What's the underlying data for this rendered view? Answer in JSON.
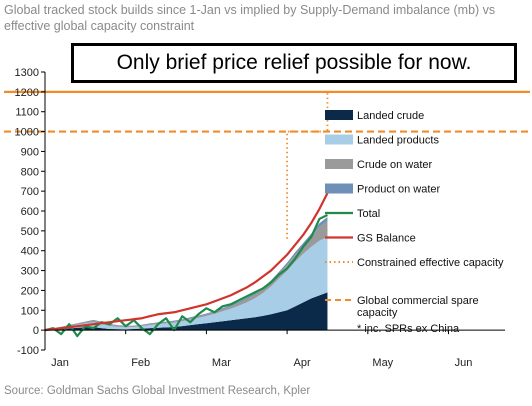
{
  "title": "Global tracked stock builds since 1-Jan vs implied by Supply-Demand imbalance (mb) vs effective global capacity constraint",
  "callout": "Only brief price relief possible for now.",
  "source": "Source: Goldman Sachs Global Investment Research, Kpler",
  "chart_data": {
    "type": "area",
    "ylim": [
      -100,
      1300
    ],
    "y_ticks": [
      -100,
      0,
      100,
      200,
      300,
      400,
      500,
      600,
      700,
      800,
      900,
      1000,
      1100,
      1200,
      1300
    ],
    "x_ticks": [
      "Jan",
      "Feb",
      "Mar",
      "Apr",
      "May",
      "Jun"
    ],
    "x_axis": "months since 1-Jan (Jan=0 ... Jun=5)",
    "x": [
      0.0,
      0.1,
      0.2,
      0.3,
      0.4,
      0.5,
      0.6,
      0.7,
      0.8,
      0.9,
      1.0,
      1.1,
      1.2,
      1.3,
      1.4,
      1.5,
      1.6,
      1.7,
      1.8,
      1.9,
      2.0,
      2.1,
      2.2,
      2.3,
      2.4,
      2.5,
      2.6,
      2.7,
      2.8,
      2.9,
      3.0,
      3.1,
      3.2,
      3.3,
      3.4,
      3.5
    ],
    "series": [
      {
        "name": "Landed crude",
        "color": "#0b2a4a",
        "kind": "stack",
        "values": [
          0,
          2,
          5,
          8,
          12,
          14,
          15,
          10,
          6,
          5,
          4,
          6,
          8,
          10,
          12,
          14,
          16,
          20,
          25,
          30,
          35,
          40,
          45,
          50,
          55,
          60,
          65,
          72,
          80,
          90,
          100,
          120,
          140,
          160,
          175,
          190
        ]
      },
      {
        "name": "Landed products",
        "color": "#a8cde6",
        "kind": "stack",
        "values": [
          0,
          3,
          6,
          10,
          15,
          20,
          25,
          20,
          15,
          12,
          10,
          10,
          12,
          15,
          18,
          20,
          22,
          25,
          28,
          32,
          36,
          42,
          50,
          58,
          68,
          80,
          95,
          115,
          140,
          170,
          200,
          225,
          245,
          260,
          275,
          280
        ]
      },
      {
        "name": "Crude on water",
        "color": "#9a9a9a",
        "kind": "stack",
        "values": [
          0,
          2,
          4,
          5,
          5,
          6,
          8,
          8,
          6,
          5,
          5,
          4,
          4,
          5,
          5,
          5,
          6,
          6,
          7,
          7,
          8,
          9,
          10,
          12,
          14,
          16,
          18,
          20,
          22,
          25,
          30,
          35,
          40,
          50,
          70,
          80
        ]
      },
      {
        "name": "Product on water",
        "color": "#6f8fb7",
        "kind": "stack",
        "values": [
          0,
          1,
          2,
          3,
          3,
          3,
          4,
          4,
          4,
          3,
          3,
          3,
          3,
          4,
          4,
          4,
          4,
          4,
          5,
          5,
          5,
          5,
          6,
          6,
          6,
          7,
          7,
          8,
          8,
          9,
          10,
          12,
          14,
          16,
          18,
          20
        ]
      },
      {
        "name": "Total",
        "color": "#1f8a4c",
        "kind": "line",
        "values": [
          0,
          10,
          -20,
          30,
          -30,
          20,
          10,
          40,
          30,
          60,
          20,
          50,
          10,
          -20,
          30,
          60,
          0,
          70,
          40,
          80,
          110,
          90,
          120,
          130,
          150,
          170,
          190,
          210,
          240,
          280,
          310,
          360,
          420,
          470,
          560,
          580
        ]
      },
      {
        "name": "GS Balance",
        "color": "#d0342c",
        "kind": "line",
        "values": [
          0,
          5,
          10,
          15,
          20,
          25,
          30,
          35,
          40,
          45,
          50,
          55,
          60,
          70,
          80,
          85,
          90,
          100,
          110,
          120,
          130,
          145,
          160,
          175,
          195,
          215,
          240,
          270,
          300,
          340,
          380,
          430,
          480,
          540,
          610,
          690
        ]
      }
    ],
    "legend": [
      {
        "label": "Landed crude",
        "color": "#0b2a4a",
        "style": "box"
      },
      {
        "label": "Landed products",
        "color": "#a8cde6",
        "style": "box"
      },
      {
        "label": "Crude on water",
        "color": "#9a9a9a",
        "style": "box"
      },
      {
        "label": "Product on water",
        "color": "#6f8fb7",
        "style": "box"
      },
      {
        "label": "Total",
        "color": "#1f8a4c",
        "style": "line"
      },
      {
        "label": "GS Balance",
        "color": "#d0342c",
        "style": "line"
      },
      {
        "label": "Constrained effective capacity",
        "color": "#f28c28",
        "style": "dotted"
      },
      {
        "label": "Global commercial spare capacity",
        "color": "#f28c28",
        "style": "dashed"
      },
      {
        "label": "* inc. SPRs ex China",
        "color": "#000000",
        "style": "none"
      }
    ],
    "reference_lines": [
      {
        "name": "capacity-line-1200",
        "y": 1200,
        "color": "#f28c28",
        "style": "solid"
      },
      {
        "name": "spare-capacity-dashed-1000",
        "y": 1000,
        "color": "#f28c28",
        "style": "dashed"
      }
    ],
    "constrained_capacity_path": [
      [
        3.0,
        460
      ],
      [
        3.0,
        1000
      ],
      [
        3.5,
        1000
      ],
      [
        3.5,
        1200
      ]
    ],
    "legend_position": "right"
  }
}
